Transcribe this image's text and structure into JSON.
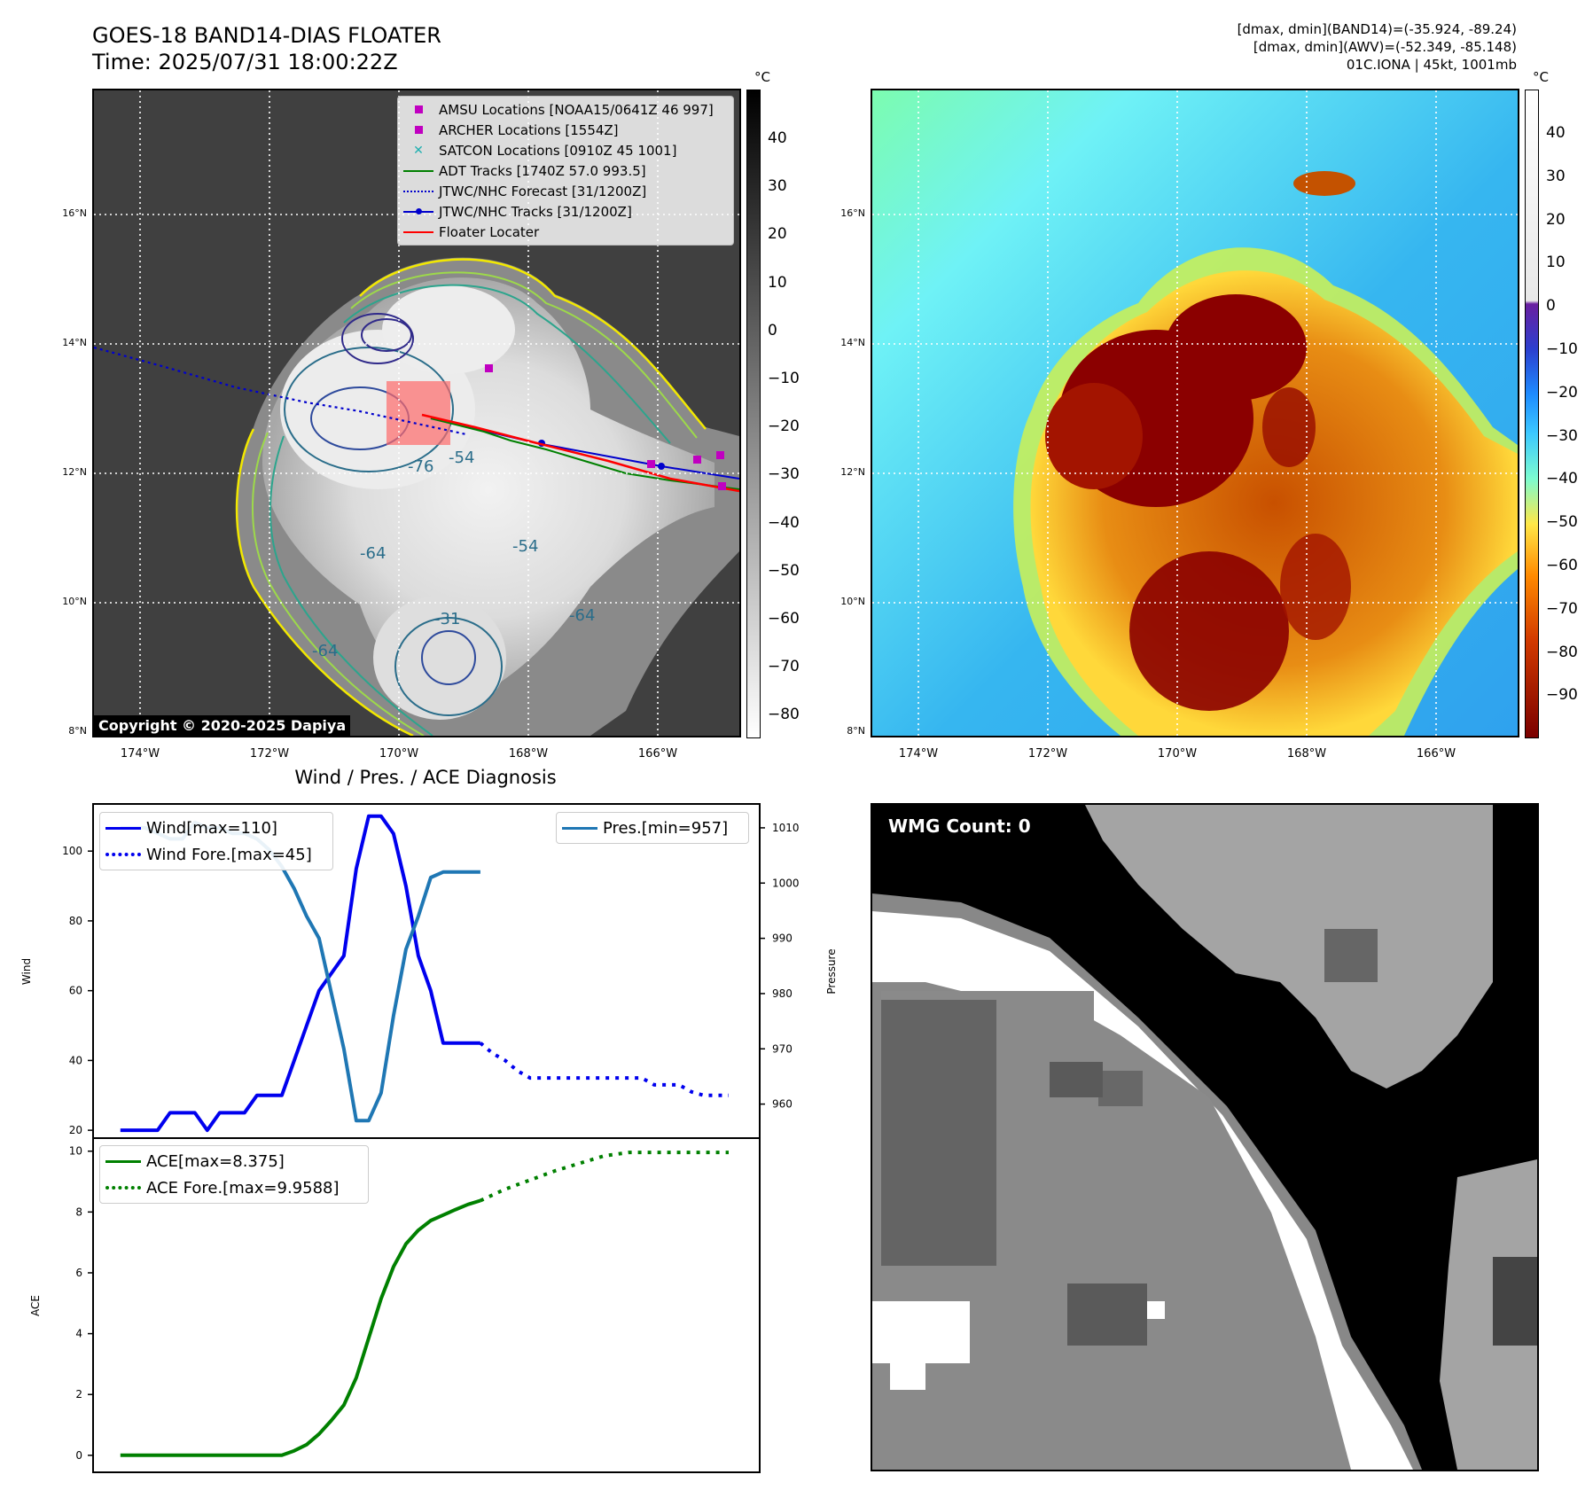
{
  "header": {
    "title_line1": "GOES-18 BAND14-DIAS FLOATER",
    "title_line2": "Time: 2025/07/31 18:00:22Z",
    "info_line1": "[dmax, dmin](BAND14)=(-35.924, -89.24)",
    "info_line2": "[dmax, dmin](AWV)=(-52.349, -85.148)",
    "info_line3": "01C.IONA | 45kt, 1001mb"
  },
  "map_axes": {
    "lat_labels": [
      "16°N",
      "14°N",
      "12°N",
      "10°N",
      "8°N"
    ],
    "lon_labels": [
      "174°W",
      "172°W",
      "170°W",
      "168°W",
      "166°W"
    ]
  },
  "left_map": {
    "colorbar_unit": "°C",
    "colorbar_ticks": [
      "40",
      "30",
      "20",
      "10",
      "0",
      "−10",
      "−20",
      "−30",
      "−40",
      "−50",
      "−60",
      "−70",
      "−80"
    ],
    "copyright": "Copyright © 2020-2025 Dapiya",
    "contour_labels": [
      "-76",
      "-54",
      "-64",
      "-64",
      "-31",
      "-54",
      "-64"
    ],
    "legend": [
      {
        "label": "AMSU Locations [NOAA15/0641Z 46 997]",
        "color": "#c000c0",
        "marker": "square"
      },
      {
        "label": "ARCHER Locations [1554Z]",
        "color": "#c000c0",
        "marker": "square"
      },
      {
        "label": "SATCON Locations [0910Z 45 1001]",
        "color": "#20b0b0",
        "marker": "x"
      },
      {
        "label": "ADT Tracks [1740Z 57.0 993.5]",
        "color": "#008000",
        "marker": "line"
      },
      {
        "label": "JTWC/NHC Forecast [31/1200Z]",
        "color": "#0000cc",
        "marker": "dotted"
      },
      {
        "label": "JTWC/NHC Tracks [31/1200Z]",
        "color": "#0000cc",
        "marker": "line-dot"
      },
      {
        "label": "Floater Locater",
        "color": "#ff0000",
        "marker": "line"
      }
    ]
  },
  "right_map": {
    "colorbar_unit": "°C",
    "colorbar_ticks": [
      "40",
      "30",
      "20",
      "10",
      "0",
      "−10",
      "−20",
      "−30",
      "−40",
      "−50",
      "−60",
      "−70",
      "−80",
      "−90"
    ]
  },
  "wmg": {
    "label": "WMG Count: 0"
  },
  "chart_data": [
    {
      "type": "line",
      "title": "Wind / Pres. / ACE Diagnosis",
      "ylabel": "Wind",
      "ylabel_right": "Pressure",
      "ylim": [
        18,
        113
      ],
      "ylim_right": [
        954,
        1014
      ],
      "yticks": [
        20,
        40,
        60,
        80,
        100
      ],
      "yticks_right": [
        960,
        970,
        980,
        990,
        1000,
        1010
      ],
      "x": [
        0,
        1,
        2,
        3,
        4,
        5,
        6,
        7,
        8,
        9,
        10,
        11,
        12,
        13,
        14,
        15,
        16,
        17,
        18,
        19,
        20,
        21,
        22,
        23,
        24,
        25,
        26,
        27,
        28,
        29,
        30,
        31,
        32,
        33,
        34,
        35,
        36,
        37,
        38,
        39,
        40,
        41,
        42,
        43,
        44,
        45,
        46,
        47,
        48,
        49
      ],
      "xlim": [
        -2.2,
        51.5
      ],
      "series": [
        {
          "name": "Wind[max=110]",
          "color": "#0000ee",
          "style": "solid",
          "axis": "left",
          "x": [
            0,
            1,
            2,
            3,
            4,
            5,
            6,
            7,
            8,
            9,
            10,
            11,
            12,
            13,
            14,
            15,
            16,
            17,
            18,
            19,
            20,
            21,
            22,
            23,
            24,
            25,
            26,
            27,
            28,
            29
          ],
          "values": [
            20,
            20,
            20,
            20,
            25,
            25,
            25,
            20,
            25,
            25,
            25,
            30,
            30,
            30,
            40,
            50,
            60,
            65,
            70,
            95,
            110,
            110,
            105,
            90,
            70,
            60,
            45,
            45,
            45,
            45
          ]
        },
        {
          "name": "Wind Fore.[max=45]",
          "color": "#0000ee",
          "style": "dotted",
          "axis": "left",
          "x": [
            29,
            30,
            31,
            32,
            33,
            34,
            35,
            36,
            37,
            38,
            39,
            40,
            41,
            42,
            43,
            44,
            45,
            46,
            47,
            48,
            49
          ],
          "values": [
            45,
            42,
            40,
            37,
            35,
            35,
            35,
            35,
            35,
            35,
            35,
            35,
            35,
            35,
            33,
            33,
            33,
            31,
            30,
            30,
            30
          ]
        },
        {
          "name": "Pres.[min=957]",
          "color": "#1f77b4",
          "style": "solid",
          "axis": "right",
          "x": [
            0,
            1,
            2,
            3,
            4,
            5,
            6,
            7,
            8,
            9,
            10,
            11,
            12,
            13,
            14,
            15,
            16,
            17,
            18,
            19,
            20,
            21,
            22,
            23,
            24,
            25,
            26,
            27,
            28,
            29
          ],
          "values": [
            1010,
            1010,
            1010,
            1009,
            1008,
            1008,
            1011,
            1010,
            1010,
            1009,
            1009,
            1008,
            1006,
            1003,
            999,
            994,
            990,
            980,
            970,
            957,
            957,
            962,
            976,
            988,
            994,
            1001,
            1002,
            1002,
            1002,
            1002
          ]
        }
      ]
    },
    {
      "type": "line",
      "ylabel": "ACE",
      "ylim": [
        -0.5,
        10.4
      ],
      "yticks": [
        0,
        2,
        4,
        6,
        8,
        10
      ],
      "xlim": [
        -2.2,
        51.5
      ],
      "series": [
        {
          "name": "ACE[max=8.375]",
          "color": "#008000",
          "style": "solid",
          "x": [
            0,
            1,
            2,
            3,
            4,
            5,
            6,
            7,
            8,
            9,
            10,
            11,
            12,
            13,
            14,
            15,
            16,
            17,
            18,
            19,
            20,
            21,
            22,
            23,
            24,
            25,
            26,
            27,
            28,
            29
          ],
          "values": [
            0,
            0,
            0,
            0,
            0,
            0,
            0,
            0,
            0,
            0,
            0,
            0,
            0,
            0,
            0.15,
            0.35,
            0.7,
            1.15,
            1.65,
            2.55,
            3.85,
            5.15,
            6.2,
            6.95,
            7.4,
            7.72,
            7.9,
            8.08,
            8.25,
            8.375
          ]
        },
        {
          "name": "ACE Fore.[max=9.9588]",
          "color": "#008000",
          "style": "dotted",
          "x": [
            29,
            31,
            33,
            35,
            37,
            39,
            41,
            43,
            45,
            47,
            49
          ],
          "values": [
            8.375,
            8.75,
            9.05,
            9.35,
            9.6,
            9.85,
            9.96,
            9.96,
            9.96,
            9.96,
            9.96
          ]
        }
      ]
    }
  ]
}
